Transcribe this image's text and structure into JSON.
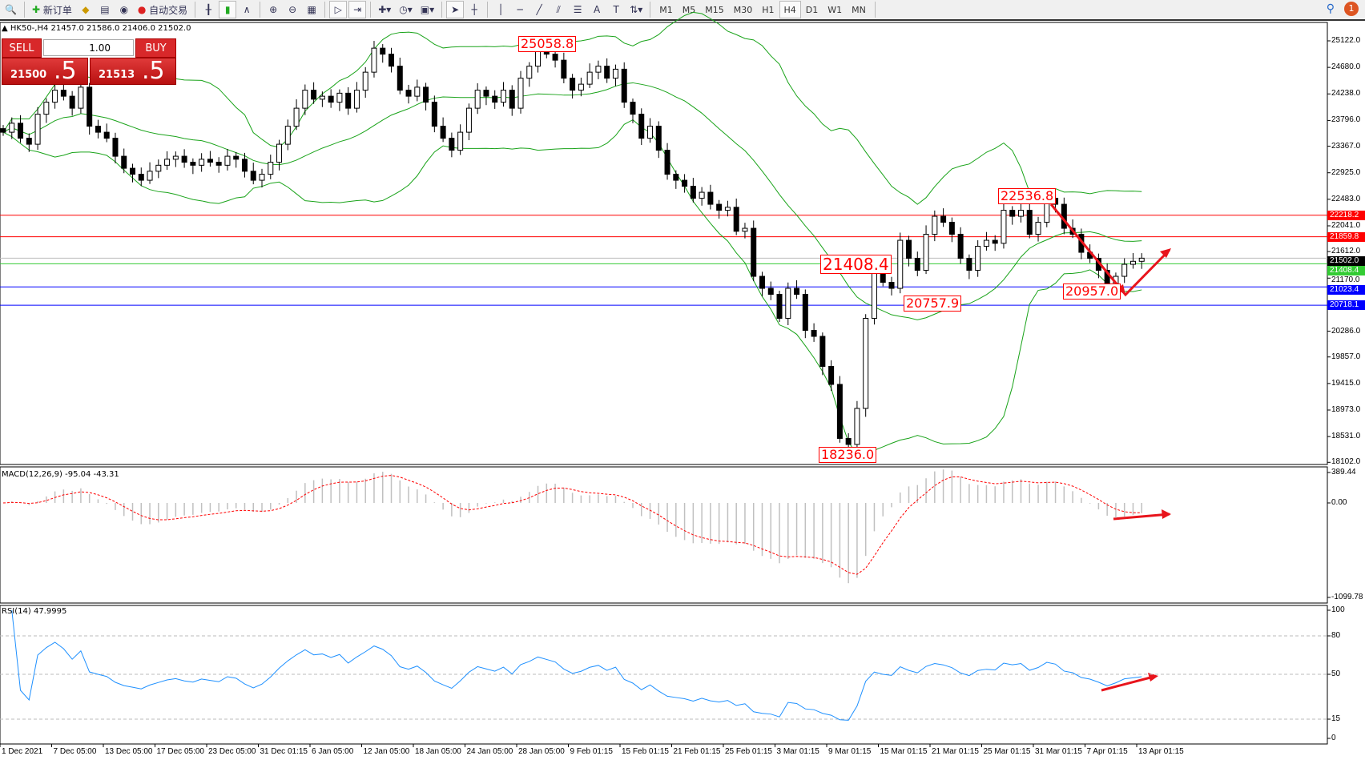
{
  "toolbar": {
    "new_order": "新订单",
    "auto_trading": "自动交易",
    "timeframes": [
      "M1",
      "M5",
      "M15",
      "M30",
      "H1",
      "H4",
      "D1",
      "W1",
      "MN"
    ],
    "active_timeframe": "H4",
    "notifications": "1"
  },
  "header": {
    "symbol_line": "HK50-,H4  21457.0 21586.0 21406.0 21502.0"
  },
  "trade_panel": {
    "sell_label": "SELL",
    "buy_label": "BUY",
    "lot": "1.00",
    "sell_price_main": "21500",
    "sell_price_big": ".5",
    "buy_price_main": "21513",
    "buy_price_big": ".5"
  },
  "colors": {
    "bands": "#19a319",
    "bull_bear": "#000000",
    "red_line": "#ff0000",
    "blue_line": "#0000ff",
    "green_line": "#33cc33",
    "macd_signal": "#ff0000",
    "macd_hist": "#c0c0c0",
    "rsi": "#1e90ff",
    "arrows": "#e8141c"
  },
  "chart_data": [
    {
      "type": "candlestick",
      "symbol": "HK50-",
      "timeframe": "H4",
      "indicator": "Bollinger Bands",
      "price_ticks": [
        25122.0,
        24680.0,
        24238.0,
        23796.0,
        23367.0,
        22925.0,
        22483.0,
        22041.0,
        21612.0,
        21170.0,
        20286.0,
        19857.0,
        19415.0,
        18973.0,
        18531.0,
        18102.0
      ],
      "ylim": [
        18102.0,
        25122.0
      ],
      "x_ticks": [
        "1 Dec 2021",
        "7 Dec 05:00",
        "13 Dec 05:00",
        "17 Dec 05:00",
        "23 Dec 05:00",
        "31 Dec 01:15",
        "6 Jan 05:00",
        "12 Jan 05:00",
        "18 Jan 05:00",
        "24 Jan 05:00",
        "28 Jan 05:00",
        "9 Feb 01:15",
        "15 Feb 01:15",
        "21 Feb 01:15",
        "25 Feb 01:15",
        "3 Mar 01:15",
        "9 Mar 01:15",
        "15 Mar 01:15",
        "21 Mar 01:15",
        "25 Mar 01:15",
        "31 Mar 01:15",
        "7 Apr 01:15",
        "13 Apr 01:15"
      ],
      "closes": [
        23600,
        23750,
        23500,
        23400,
        23900,
        24100,
        24300,
        24200,
        24000,
        24350,
        23700,
        23600,
        23500,
        23200,
        23000,
        22900,
        22800,
        22950,
        23050,
        23150,
        23200,
        23100,
        23050,
        23150,
        23100,
        23050,
        23200,
        23150,
        22950,
        22800,
        22900,
        23100,
        23400,
        23700,
        24000,
        24300,
        24150,
        24200,
        24100,
        24250,
        24000,
        24300,
        24600,
        25000,
        24900,
        24700,
        24300,
        24200,
        24350,
        24100,
        23700,
        23500,
        23300,
        23600,
        24000,
        24300,
        24200,
        24100,
        24300,
        24000,
        24500,
        24700,
        25000,
        24900,
        24800,
        24500,
        24300,
        24400,
        24600,
        24700,
        24500,
        24650,
        24100,
        23900,
        23500,
        23700,
        23300,
        22900,
        22800,
        22700,
        22500,
        22600,
        22400,
        22300,
        22350,
        21950,
        22000,
        21200,
        21000,
        20900,
        20500,
        21000,
        20900,
        20300,
        20200,
        19700,
        19400,
        18500,
        18400,
        19000,
        20500,
        21300,
        21100,
        21000,
        21800,
        21500,
        21300,
        21900,
        22200,
        22100,
        21900,
        21500,
        21300,
        21700,
        21800,
        21750,
        22300,
        22200,
        22300,
        21900,
        22100,
        22500,
        22400,
        22000,
        21900,
        21600,
        21500,
        21300,
        21050,
        21200,
        21400,
        21450,
        21502
      ],
      "annotations": [
        "25058.8",
        "22536.8",
        "21408.4",
        "20757.9",
        "20957.0",
        "18236.0"
      ],
      "horizontal_lines": [
        {
          "price": 22218.2,
          "label": "22218.2",
          "color": "#ff0000"
        },
        {
          "price": 21859.8,
          "label": "21859.8",
          "color": "#ff0000"
        },
        {
          "price": 21502.0,
          "label": "21502.0",
          "color": "#000000"
        },
        {
          "price": 21408.4,
          "label": "21408.4",
          "color": "#33cc33"
        },
        {
          "price": 21023.4,
          "label": "21023.4",
          "color": "#0000ff"
        },
        {
          "price": 20718.1,
          "label": "20718.1",
          "color": "#0000ff"
        }
      ]
    },
    {
      "type": "bar",
      "title": "MACD(12,26,9) -95.04 -43.31",
      "ticks": [
        "389.44",
        "0.00",
        "-1099.78"
      ],
      "ylim": [
        -1099.78,
        389.44
      ]
    },
    {
      "type": "line",
      "title": "RSI(14) 47.9995",
      "ticks": [
        "100",
        "80",
        "50",
        "15",
        "0"
      ],
      "levels": [
        80,
        50,
        15
      ],
      "ylim": [
        0,
        100
      ]
    }
  ]
}
